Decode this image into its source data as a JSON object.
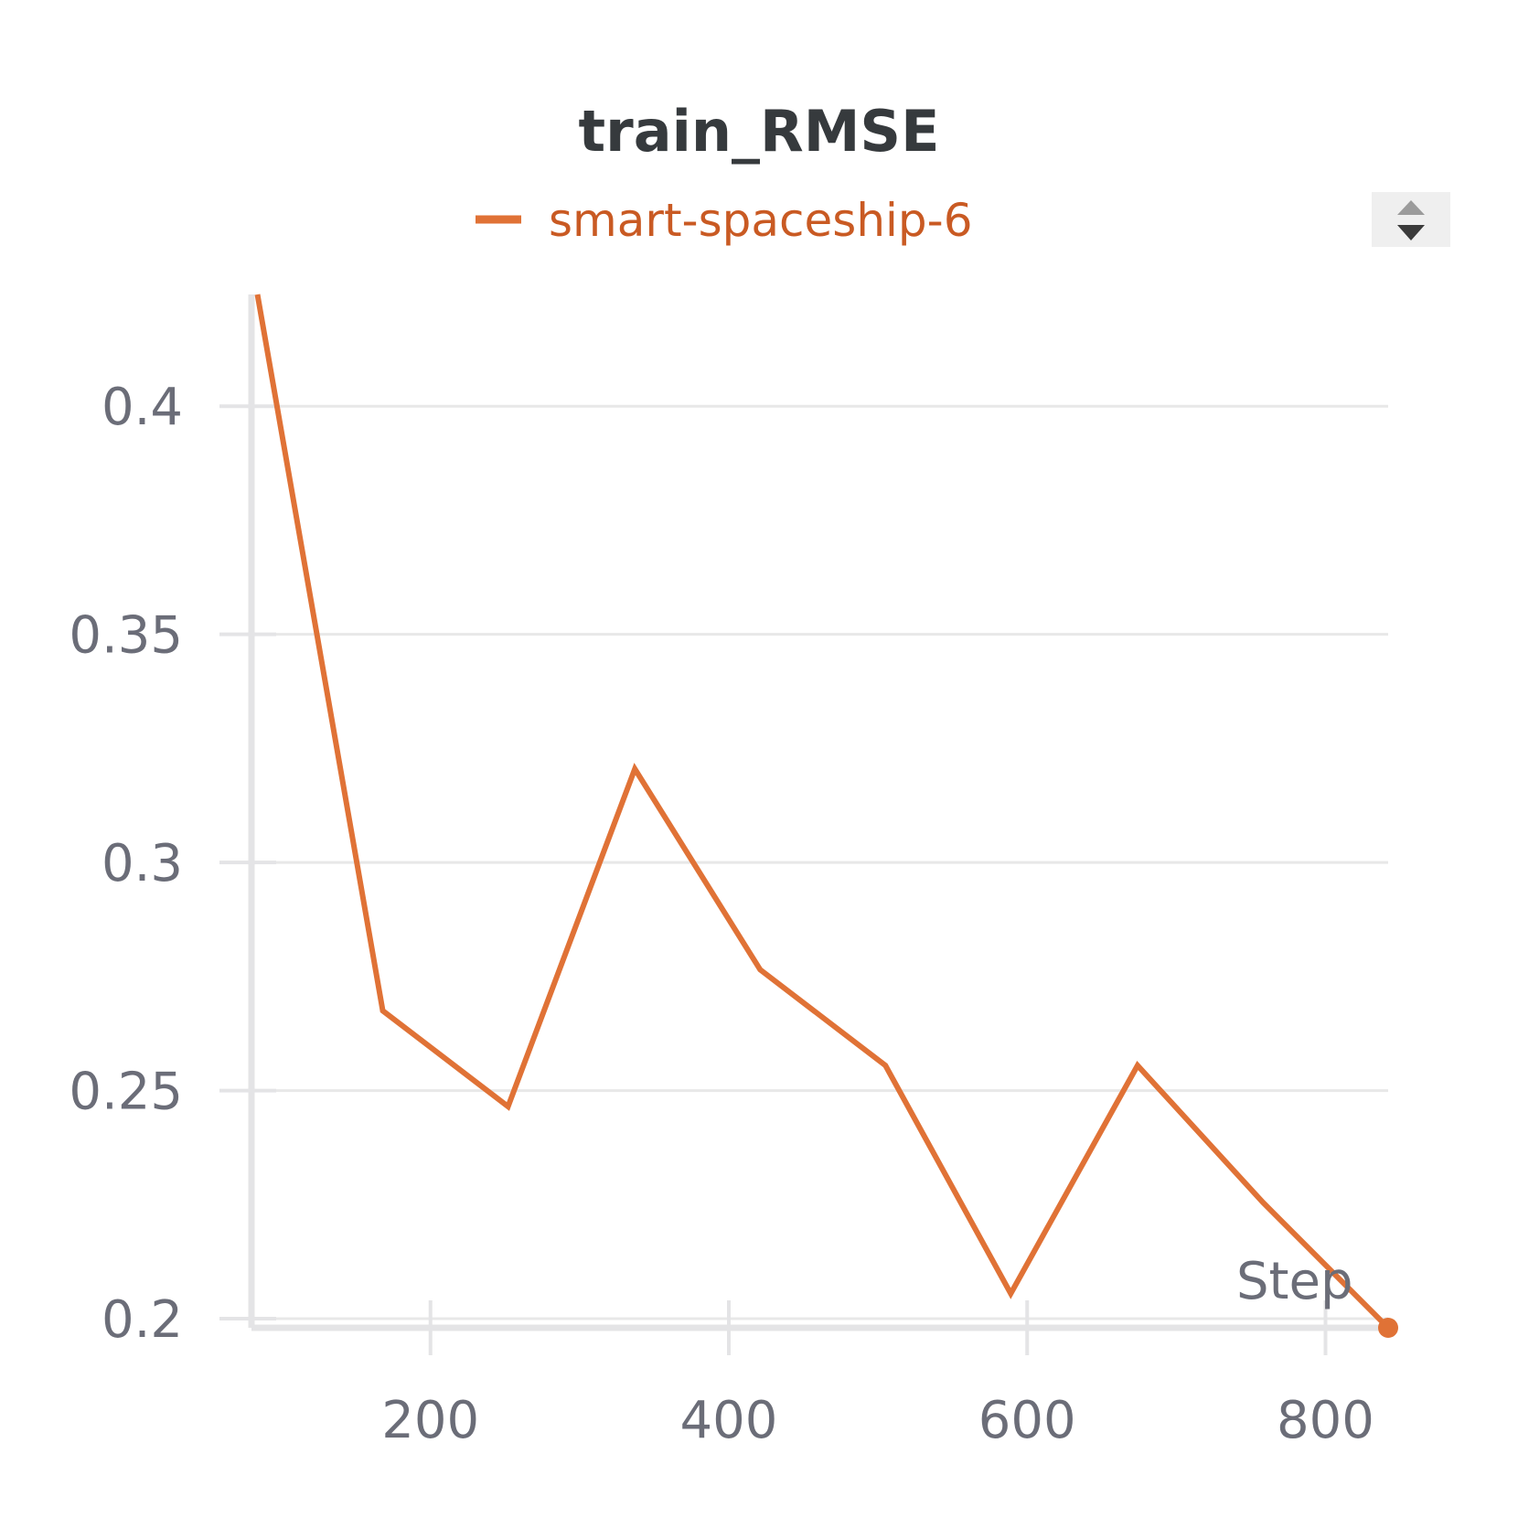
{
  "chart_data": {
    "type": "line",
    "title": "train_RMSE",
    "xlabel": "Step",
    "ylabel": "",
    "xlim": [
      80,
      842
    ],
    "ylim": [
      0.198,
      0.4245
    ],
    "x_ticks": [
      200,
      400,
      600,
      800
    ],
    "x_tick_labels": [
      "200",
      "400",
      "600",
      "800"
    ],
    "y_ticks": [
      0.2,
      0.25,
      0.3,
      0.35,
      0.4
    ],
    "y_tick_labels": [
      "0.2",
      "0.25",
      "0.3",
      "0.35",
      "0.4"
    ],
    "grid": true,
    "legend": {
      "position": "top"
    },
    "series": [
      {
        "name": "smart-spaceship-6",
        "color": "#e07236",
        "x": [
          84,
          168,
          252,
          337,
          421,
          505,
          589,
          674,
          758,
          842
        ],
        "y": [
          0.4245,
          0.2675,
          0.2465,
          0.3205,
          0.2765,
          0.2555,
          0.2055,
          0.2555,
          0.2255,
          0.198
        ]
      }
    ]
  },
  "colors": {
    "series_line": "#e07236",
    "legend_text": "#c95a23",
    "title": "#363a3d",
    "tick_text": "#6b6d78"
  },
  "controls": {
    "legend_scroll_up_icon": "triangle-up-icon",
    "legend_scroll_down_icon": "triangle-down-icon"
  }
}
